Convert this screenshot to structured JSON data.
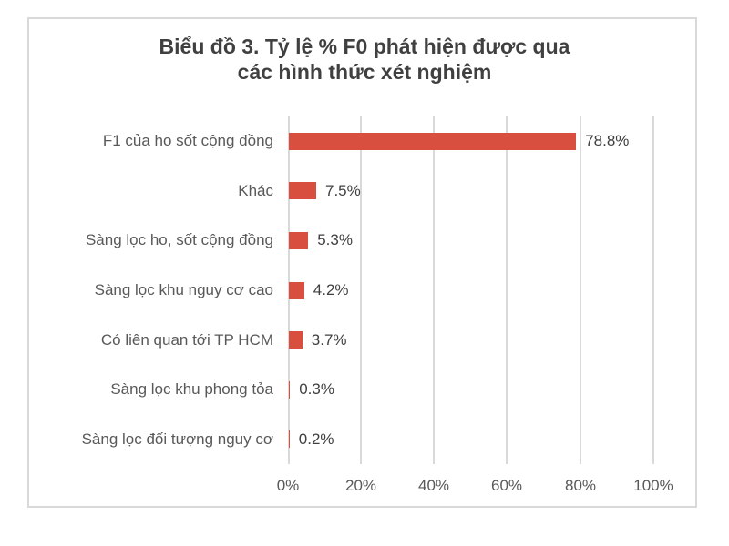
{
  "chart_data": {
    "type": "bar",
    "orientation": "horizontal",
    "title": "Biểu đồ 3. Tỷ lệ % F0 phát hiện được qua các hình thức xét nghiệm",
    "title_lines": [
      "Biểu đồ 3. Tỷ lệ % F0 phát hiện được qua",
      "các hình thức xét nghiệm"
    ],
    "categories": [
      "F1 của ho sốt cộng đồng",
      "Khác",
      "Sàng lọc ho, sốt cộng đồng",
      "Sàng lọc khu nguy cơ cao",
      "Có liên quan tới TP HCM",
      "Sàng lọc khu phong tỏa",
      "Sàng lọc đối tượng nguy cơ"
    ],
    "values": [
      78.8,
      7.5,
      5.3,
      4.2,
      3.7,
      0.3,
      0.2
    ],
    "value_labels": [
      "78.8%",
      "7.5%",
      "5.3%",
      "4.2%",
      "3.7%",
      "0.3%",
      "0.2%"
    ],
    "xlabel": "",
    "ylabel": "",
    "xlim": [
      0,
      100
    ],
    "x_ticks": [
      "0%",
      "20%",
      "40%",
      "60%",
      "80%",
      "100%"
    ],
    "grid": "vertical",
    "legend": "none",
    "bar_color": "#d94f3f"
  }
}
